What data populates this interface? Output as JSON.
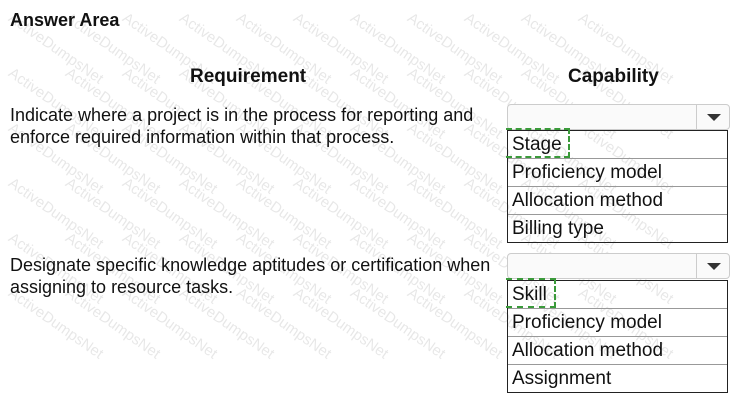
{
  "title": "Answer Area",
  "watermark": "ActiveDumpsNet",
  "headers": {
    "requirement": "Requirement",
    "capability": "Capability"
  },
  "questions": [
    {
      "requirement": "Indicate where a project is in the process for reporting and enforce required information within that process.",
      "options": [
        "Stage",
        "Proficiency model",
        "Allocation method",
        "Billing type"
      ],
      "selected": "Stage"
    },
    {
      "requirement": "Designate specific knowledge aptitudes or certification when assigning to resource tasks.",
      "options": [
        "Skill",
        "Proficiency model",
        "Allocation method",
        "Assignment"
      ],
      "selected": "Skill"
    }
  ],
  "colors": {
    "selection_border": "#3a9a3a"
  }
}
